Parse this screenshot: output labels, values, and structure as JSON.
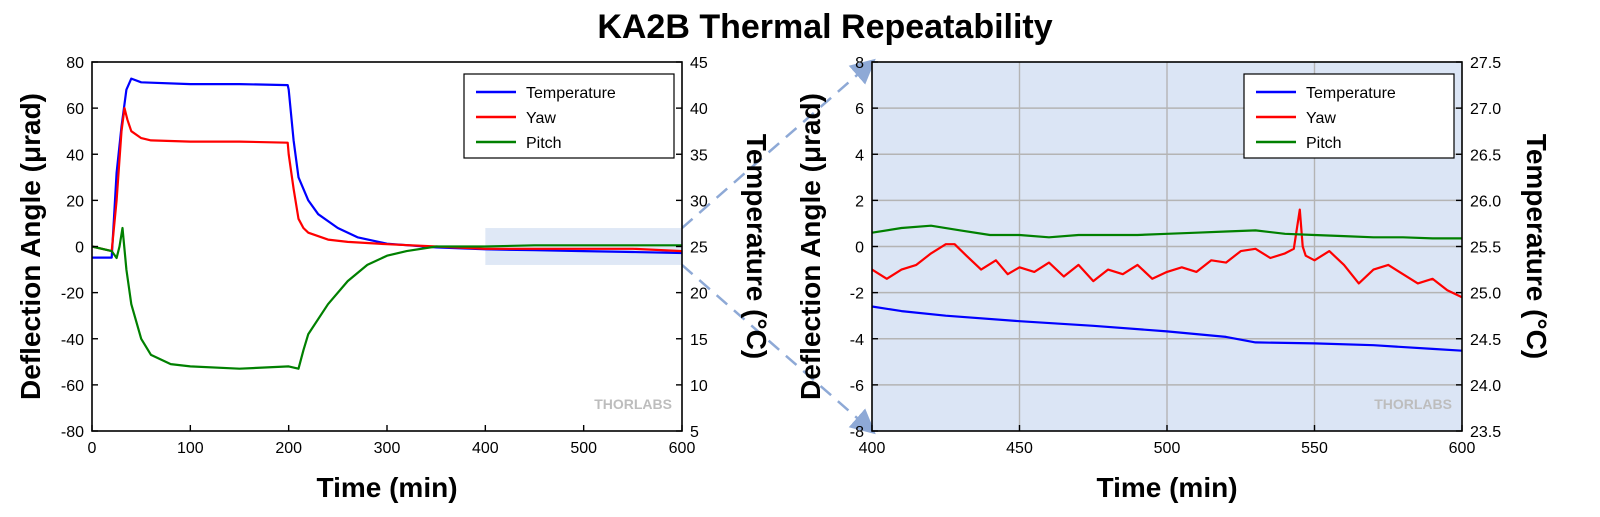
{
  "title": "KA2B Thermal Repeatability",
  "watermark": "THORLABS",
  "colors": {
    "temperature": "#0000ff",
    "yaw": "#ff0000",
    "pitch": "#008000",
    "zoom_region": "#dbe5f5",
    "connector": "#8ea9d6"
  },
  "chart_data": [
    {
      "type": "line",
      "xlabel": "Time (min)",
      "ylabel": "Deflection Angle (μrad)",
      "y2label": "Temperature (°C)",
      "xlim": [
        0,
        600
      ],
      "ylim": [
        -80,
        80
      ],
      "y2lim": [
        5,
        45
      ],
      "xticks": [
        "0",
        "100",
        "200",
        "300",
        "400",
        "500",
        "600"
      ],
      "yticks": [
        "-80",
        "-60",
        "-40",
        "-20",
        "0",
        "20",
        "40",
        "60",
        "80"
      ],
      "y2ticks": [
        "5",
        "10",
        "15",
        "20",
        "25",
        "30",
        "35",
        "40",
        "45"
      ],
      "grid": false,
      "legend": "top-right",
      "highlight_region": {
        "x": [
          400,
          600
        ],
        "y": [
          -8,
          8
        ]
      },
      "series": [
        {
          "name": "Temperature",
          "axis": "right",
          "x": [
            0,
            20,
            25,
            30,
            35,
            40,
            50,
            100,
            150,
            199,
            200,
            205,
            210,
            220,
            230,
            250,
            270,
            300,
            350,
            400,
            450,
            500,
            550,
            600
          ],
          "y": [
            23.8,
            23.8,
            33.0,
            38.0,
            42.0,
            43.2,
            42.8,
            42.6,
            42.6,
            42.5,
            42.0,
            36.5,
            32.5,
            30.0,
            28.5,
            27.0,
            26.0,
            25.3,
            24.9,
            24.7,
            24.6,
            24.5,
            24.4,
            24.3
          ]
        },
        {
          "name": "Yaw",
          "axis": "left",
          "x": [
            0,
            20,
            25,
            30,
            33,
            36,
            40,
            50,
            60,
            100,
            150,
            199,
            200,
            205,
            210,
            215,
            220,
            240,
            260,
            300,
            350,
            400,
            450,
            500,
            550,
            600
          ],
          "y": [
            0,
            -2,
            20,
            50,
            60,
            55,
            50,
            47,
            46,
            45.5,
            45.5,
            45,
            40,
            25,
            12,
            8,
            6,
            3,
            2,
            1,
            0,
            -1,
            -1,
            -1,
            -1,
            -2
          ]
        },
        {
          "name": "Pitch",
          "axis": "left",
          "x": [
            0,
            20,
            25,
            28,
            31,
            35,
            40,
            50,
            60,
            80,
            100,
            150,
            200,
            210,
            215,
            220,
            240,
            260,
            280,
            300,
            320,
            350,
            400,
            450,
            500,
            550,
            600
          ],
          "y": [
            0,
            -2,
            -5,
            0,
            8,
            -10,
            -25,
            -40,
            -47,
            -51,
            -52,
            -53,
            -52,
            -53,
            -45,
            -38,
            -25,
            -15,
            -8,
            -4,
            -2,
            0,
            0,
            0.5,
            0.5,
            0.5,
            0.5
          ]
        }
      ]
    },
    {
      "type": "line",
      "xlabel": "Time (min)",
      "ylabel": "Deflection Angle (μrad)",
      "y2label": "Temperature (°C)",
      "xlim": [
        400,
        600
      ],
      "ylim": [
        -8,
        8
      ],
      "y2lim": [
        23.5,
        27.5
      ],
      "xticks": [
        "400",
        "450",
        "500",
        "550",
        "600"
      ],
      "yticks": [
        "-8",
        "-6",
        "-4",
        "-2",
        "0",
        "2",
        "4",
        "6",
        "8"
      ],
      "y2ticks": [
        "23.5",
        "24.0",
        "24.5",
        "25.0",
        "25.5",
        "26.0",
        "26.5",
        "27.0",
        "27.5"
      ],
      "grid": true,
      "legend": "top-right",
      "series": [
        {
          "name": "Temperature",
          "axis": "right",
          "x": [
            400,
            410,
            425,
            450,
            475,
            500,
            520,
            530,
            550,
            570,
            590,
            600
          ],
          "y": [
            24.85,
            24.8,
            24.75,
            24.69,
            24.64,
            24.58,
            24.52,
            24.46,
            24.45,
            24.43,
            24.39,
            24.37
          ]
        },
        {
          "name": "Yaw",
          "axis": "left",
          "x": [
            400,
            405,
            410,
            415,
            420,
            425,
            428,
            432,
            437,
            442,
            446,
            450,
            455,
            460,
            465,
            470,
            475,
            480,
            485,
            490,
            495,
            500,
            505,
            510,
            515,
            520,
            525,
            530,
            535,
            540,
            543,
            545,
            546,
            547,
            550,
            555,
            560,
            565,
            570,
            575,
            580,
            585,
            590,
            595,
            600
          ],
          "y": [
            -1.0,
            -1.4,
            -1.0,
            -0.8,
            -0.3,
            0.1,
            0.1,
            -0.4,
            -1.0,
            -0.6,
            -1.2,
            -0.9,
            -1.1,
            -0.7,
            -1.3,
            -0.8,
            -1.5,
            -1.0,
            -1.2,
            -0.8,
            -1.4,
            -1.1,
            -0.9,
            -1.1,
            -0.6,
            -0.7,
            -0.2,
            -0.1,
            -0.5,
            -0.3,
            -0.1,
            1.6,
            0.0,
            -0.4,
            -0.6,
            -0.2,
            -0.8,
            -1.6,
            -1.0,
            -0.8,
            -1.2,
            -1.6,
            -1.4,
            -1.9,
            -2.2
          ]
        },
        {
          "name": "Pitch",
          "axis": "left",
          "x": [
            400,
            410,
            420,
            430,
            440,
            450,
            460,
            470,
            480,
            490,
            500,
            510,
            520,
            530,
            540,
            550,
            560,
            570,
            580,
            590,
            600
          ],
          "y": [
            0.6,
            0.8,
            0.9,
            0.7,
            0.5,
            0.5,
            0.4,
            0.5,
            0.5,
            0.5,
            0.55,
            0.6,
            0.65,
            0.7,
            0.55,
            0.5,
            0.45,
            0.4,
            0.4,
            0.35,
            0.35
          ]
        }
      ]
    }
  ]
}
